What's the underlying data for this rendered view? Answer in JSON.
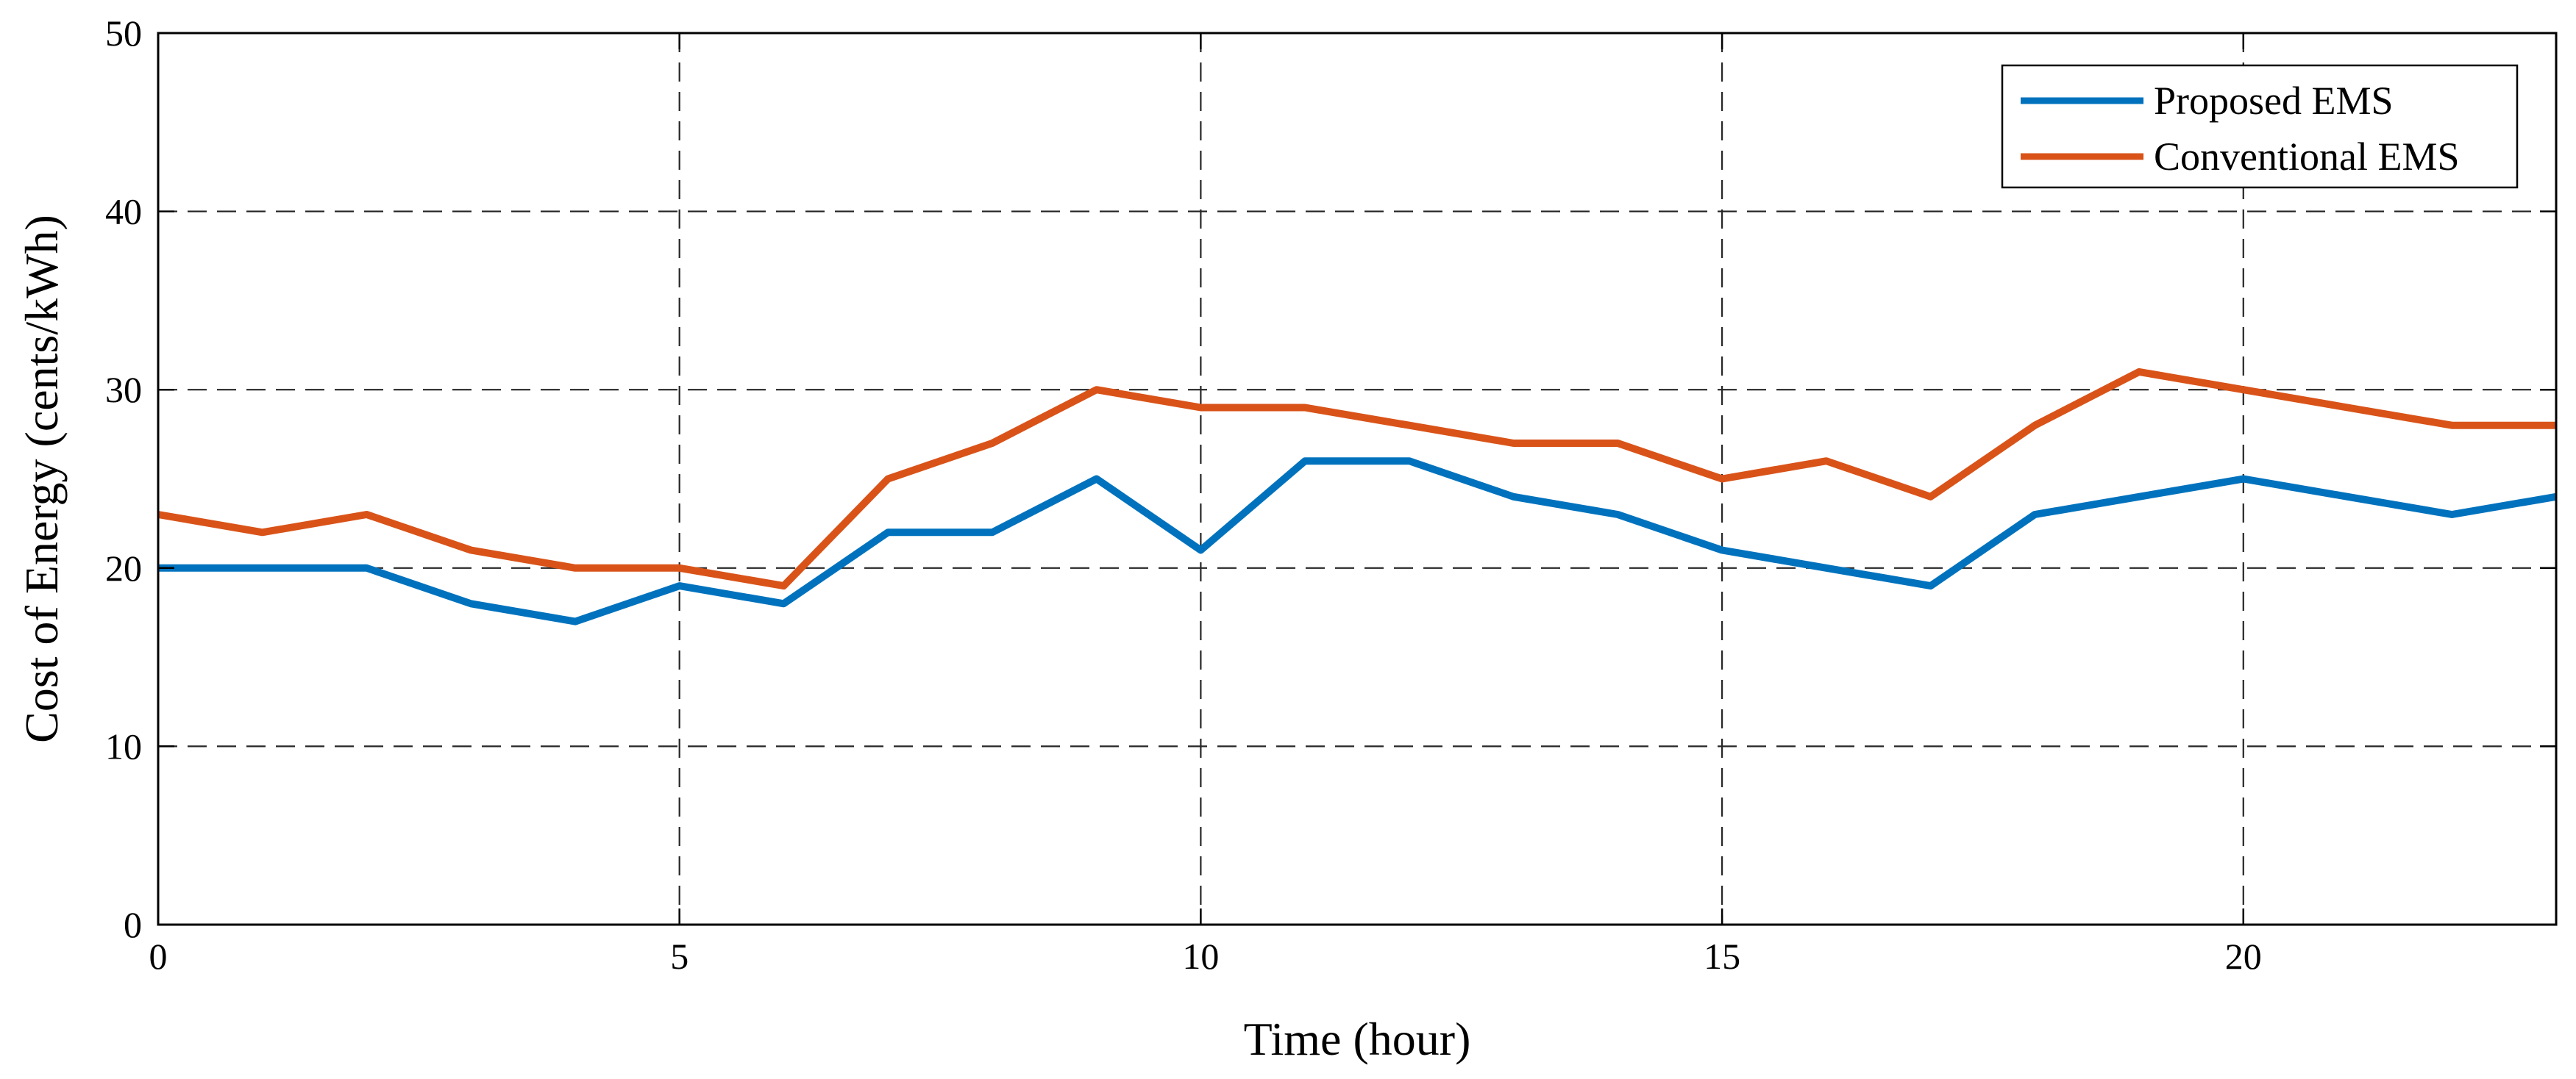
{
  "chart_data": {
    "type": "line",
    "title": "",
    "xlabel": "Time (hour)",
    "ylabel": "Cost of Energy (cents/kWh)",
    "xlim": [
      0,
      23
    ],
    "ylim": [
      0,
      50
    ],
    "xticks": [
      0,
      5,
      10,
      15,
      20
    ],
    "yticks": [
      0,
      10,
      20,
      30,
      40,
      50
    ],
    "grid": true,
    "legend_position": "top-right",
    "x": [
      0,
      1,
      2,
      3,
      4,
      5,
      6,
      7,
      8,
      9,
      10,
      11,
      12,
      13,
      14,
      15,
      16,
      17,
      18,
      19,
      20,
      21,
      22,
      23
    ],
    "series": [
      {
        "name": "Proposed EMS",
        "color": "#0072BD",
        "values": [
          20,
          20,
          20,
          18,
          17,
          19,
          18,
          22,
          22,
          25,
          21,
          26,
          26,
          24,
          23,
          21,
          20,
          19,
          23,
          24,
          25,
          24,
          23,
          24
        ]
      },
      {
        "name": "Conventional EMS",
        "color": "#D95319",
        "values": [
          23,
          22,
          23,
          21,
          20,
          20,
          19,
          25,
          27,
          30,
          29,
          29,
          28,
          27,
          27,
          25,
          26,
          24,
          28,
          31,
          30,
          29,
          28,
          28
        ]
      }
    ]
  }
}
